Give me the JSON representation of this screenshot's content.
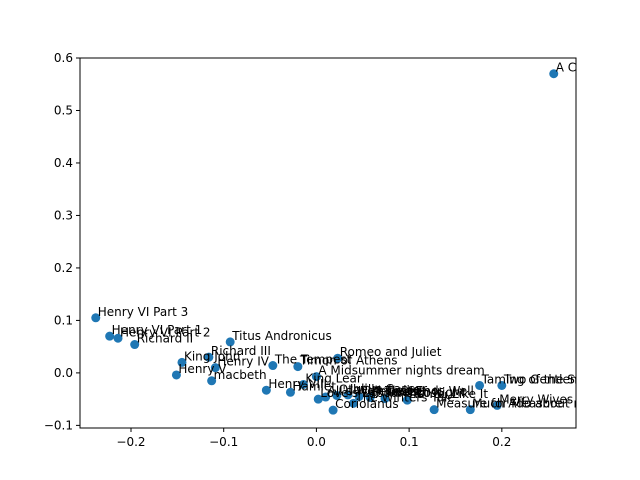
{
  "chart_data": {
    "type": "scatter",
    "title": "",
    "xlabel": "",
    "ylabel": "",
    "xlim": [
      -0.255,
      0.28
    ],
    "ylim": [
      -0.105,
      0.6
    ],
    "xticks": [
      -0.2,
      -0.1,
      0.0,
      0.1,
      0.2
    ],
    "xtick_labels": [
      "−0.2",
      "−0.1",
      "0.0",
      "0.1",
      "0.2"
    ],
    "yticks": [
      -0.1,
      0.0,
      0.1,
      0.2,
      0.3,
      0.4,
      0.5,
      0.6
    ],
    "ytick_labels": [
      "−0.1",
      "0.0",
      "0.1",
      "0.2",
      "0.3",
      "0.4",
      "0.5",
      "0.6"
    ],
    "grid": false,
    "legend": "none",
    "marker_color": "#1f77b4",
    "points": [
      {
        "x": 0.256,
        "y": 0.57,
        "label": "A Comedy of Errors"
      },
      {
        "x": -0.238,
        "y": 0.105,
        "label": "Henry VI Part 3"
      },
      {
        "x": -0.223,
        "y": 0.07,
        "label": "Henry VI Part 1"
      },
      {
        "x": -0.214,
        "y": 0.066,
        "label": "Henry VI Part 2"
      },
      {
        "x": -0.196,
        "y": 0.054,
        "label": "Richard II"
      },
      {
        "x": -0.093,
        "y": 0.059,
        "label": "Titus Andronicus"
      },
      {
        "x": -0.116,
        "y": 0.03,
        "label": "Richard III"
      },
      {
        "x": -0.145,
        "y": 0.02,
        "label": "King John"
      },
      {
        "x": -0.109,
        "y": 0.01,
        "label": "Henry IV"
      },
      {
        "x": -0.047,
        "y": 0.014,
        "label": "The Tempest"
      },
      {
        "x": -0.02,
        "y": 0.012,
        "label": "Timon of Athens"
      },
      {
        "x": 0.023,
        "y": 0.028,
        "label": "Romeo and Juliet"
      },
      {
        "x": -0.151,
        "y": -0.004,
        "label": "Henry V"
      },
      {
        "x": -0.113,
        "y": -0.015,
        "label": "macbeth"
      },
      {
        "x": 0.0,
        "y": -0.007,
        "label": "A Midsummer nights dream"
      },
      {
        "x": -0.014,
        "y": -0.022,
        "label": "King Lear"
      },
      {
        "x": -0.054,
        "y": -0.033,
        "label": "Henry VIII"
      },
      {
        "x": -0.028,
        "y": -0.037,
        "label": "Hamlet"
      },
      {
        "x": 0.002,
        "y": -0.05,
        "label": "Love's Labour's Lost"
      },
      {
        "x": 0.01,
        "y": -0.046,
        "label": "All's Well That Ends Well"
      },
      {
        "x": 0.022,
        "y": -0.043,
        "label": "Othello"
      },
      {
        "x": 0.034,
        "y": -0.042,
        "label": "Julius Caesar"
      },
      {
        "x": 0.046,
        "y": -0.045,
        "label": "Cymbeline"
      },
      {
        "x": 0.058,
        "y": -0.047,
        "label": "Pericles"
      },
      {
        "x": 0.074,
        "y": -0.049,
        "label": "Twelfth Night"
      },
      {
        "x": 0.04,
        "y": -0.058,
        "label": "The Winters Tale"
      },
      {
        "x": 0.098,
        "y": -0.052,
        "label": "As You Like It"
      },
      {
        "x": 0.018,
        "y": -0.071,
        "label": "Coriolanus"
      },
      {
        "x": 0.127,
        "y": -0.07,
        "label": "Measure for Measure"
      },
      {
        "x": 0.166,
        "y": -0.07,
        "label": "Much Ado about nothing"
      },
      {
        "x": 0.195,
        "y": -0.062,
        "label": "Merry Wives of Windsor"
      },
      {
        "x": 0.176,
        "y": -0.024,
        "label": "Taming of the Shrew"
      },
      {
        "x": 0.2,
        "y": -0.024,
        "label": "Two Gentlemen of Verona"
      }
    ]
  }
}
